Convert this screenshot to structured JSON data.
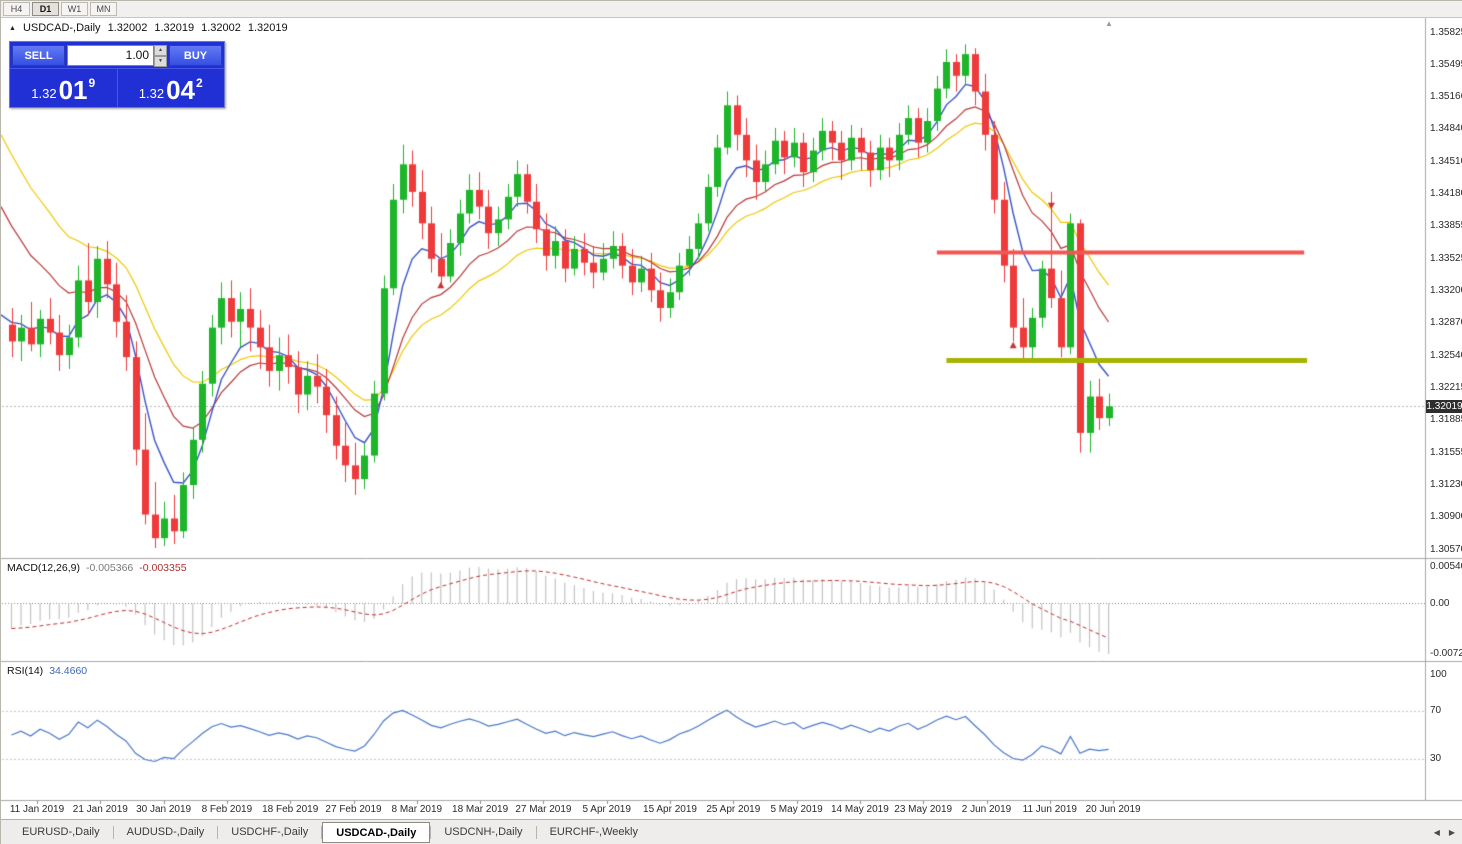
{
  "toolbar": {
    "timeframes": [
      {
        "label": "H4",
        "active": false
      },
      {
        "label": "D1",
        "active": true
      },
      {
        "label": "W1",
        "active": false
      },
      {
        "label": "MN",
        "active": false
      }
    ]
  },
  "header": {
    "symbol": "USDCAD-,Daily",
    "open": "1.32002",
    "high": "1.32019",
    "low": "1.32002",
    "close": "1.32019"
  },
  "trade_panel": {
    "sell_label": "SELL",
    "buy_label": "BUY",
    "volume": "1.00",
    "sell_price": {
      "prefix": "1.32",
      "big": "01",
      "sup": "9"
    },
    "buy_price": {
      "prefix": "1.32",
      "big": "04",
      "sup": "2"
    }
  },
  "price_axis": {
    "labels": [
      "1.35825",
      "1.35495",
      "1.35166",
      "1.34840",
      "1.34510",
      "1.34180",
      "1.33855",
      "1.33525",
      "1.33200",
      "1.32870",
      "1.32540",
      "1.32215",
      "1.31885",
      "1.31555",
      "1.31230",
      "1.30900",
      "1.30570"
    ],
    "current": "1.32019"
  },
  "macd_panel": {
    "label": "MACD(12,26,9)",
    "value_main": "-0.005366",
    "value_signal": "-0.003355",
    "axis_labels": [
      "0.005402",
      "0.00",
      "-0.007247"
    ]
  },
  "rsi_panel": {
    "label": "RSI(14)",
    "value": "34.4660",
    "axis_labels": [
      "100",
      "70",
      "30"
    ],
    "levels": [
      70,
      30
    ]
  },
  "date_axis": {
    "labels": [
      "11 Jan 2019",
      "21 Jan 2019",
      "30 Jan 2019",
      "8 Feb 2019",
      "18 Feb 2019",
      "27 Feb 2019",
      "8 Mar 2019",
      "18 Mar 2019",
      "27 Mar 2019",
      "5 Apr 2019",
      "15 Apr 2019",
      "25 Apr 2019",
      "5 May 2019",
      "14 May 2019",
      "23 May 2019",
      "2 Jun 2019",
      "11 Jun 2019",
      "20 Jun 2019"
    ]
  },
  "tabs": {
    "items": [
      {
        "label": "EURUSD-,Daily",
        "active": false
      },
      {
        "label": "AUDUSD-,Daily",
        "active": false
      },
      {
        "label": "USDCHF-,Daily",
        "active": false
      },
      {
        "label": "USDCAD-,Daily",
        "active": true
      },
      {
        "label": "USDCNH-,Daily",
        "active": false
      },
      {
        "label": "EURCHF-,Weekly",
        "active": false
      }
    ]
  },
  "icons": {
    "header_marker": "▲",
    "spinner_up": "▲",
    "spinner_down": "▼",
    "tab_scroll_left": "◀",
    "tab_scroll_right": "▶",
    "shift_marker": "▲"
  },
  "chart_data": {
    "type": "candlestick",
    "symbol": "USDCAD",
    "timeframe": "Daily",
    "price_scale": {
      "max": 1.35825,
      "min": 1.3057
    },
    "current_price": 1.32019,
    "colors": {
      "up": "#1db52a",
      "down": "#ef3a3c"
    },
    "ohlc": [
      [
        1.3285,
        1.3302,
        1.3252,
        1.3268
      ],
      [
        1.3268,
        1.3295,
        1.3248,
        1.3282
      ],
      [
        1.3282,
        1.3308,
        1.3258,
        1.3265
      ],
      [
        1.3265,
        1.33,
        1.3252,
        1.3291
      ],
      [
        1.3291,
        1.3312,
        1.3265,
        1.3277
      ],
      [
        1.3277,
        1.3295,
        1.3238,
        1.3254
      ],
      [
        1.3254,
        1.3285,
        1.324,
        1.3272
      ],
      [
        1.3272,
        1.3345,
        1.3262,
        1.333
      ],
      [
        1.333,
        1.3368,
        1.3295,
        1.3308
      ],
      [
        1.3308,
        1.3365,
        1.3292,
        1.3352
      ],
      [
        1.3352,
        1.337,
        1.3312,
        1.3326
      ],
      [
        1.3326,
        1.3348,
        1.3272,
        1.3288
      ],
      [
        1.3288,
        1.3315,
        1.3238,
        1.3252
      ],
      [
        1.3252,
        1.3268,
        1.3142,
        1.3158
      ],
      [
        1.3158,
        1.3195,
        1.3082,
        1.3092
      ],
      [
        1.3092,
        1.3125,
        1.3058,
        1.3068
      ],
      [
        1.3068,
        1.3105,
        1.306,
        1.3088
      ],
      [
        1.3088,
        1.3112,
        1.3062,
        1.3075
      ],
      [
        1.3075,
        1.3135,
        1.3068,
        1.3122
      ],
      [
        1.3122,
        1.318,
        1.3108,
        1.3168
      ],
      [
        1.3168,
        1.3238,
        1.3155,
        1.3225
      ],
      [
        1.3225,
        1.3295,
        1.3212,
        1.3282
      ],
      [
        1.3282,
        1.3328,
        1.3265,
        1.3312
      ],
      [
        1.3312,
        1.333,
        1.3272,
        1.3288
      ],
      [
        1.3288,
        1.3318,
        1.3262,
        1.3301
      ],
      [
        1.3301,
        1.3322,
        1.3258,
        1.3282
      ],
      [
        1.3282,
        1.33,
        1.324,
        1.3262
      ],
      [
        1.3262,
        1.3285,
        1.3222,
        1.3238
      ],
      [
        1.3238,
        1.3272,
        1.3218,
        1.3254
      ],
      [
        1.3254,
        1.3275,
        1.3225,
        1.3242
      ],
      [
        1.3242,
        1.3258,
        1.3195,
        1.3214
      ],
      [
        1.3214,
        1.3248,
        1.3198,
        1.3233
      ],
      [
        1.3233,
        1.3255,
        1.3205,
        1.3222
      ],
      [
        1.3222,
        1.324,
        1.3175,
        1.3193
      ],
      [
        1.3193,
        1.3212,
        1.3148,
        1.3162
      ],
      [
        1.3162,
        1.3185,
        1.3125,
        1.3142
      ],
      [
        1.3142,
        1.3165,
        1.3112,
        1.3128
      ],
      [
        1.3128,
        1.3165,
        1.3118,
        1.3152
      ],
      [
        1.3152,
        1.3228,
        1.3145,
        1.3215
      ],
      [
        1.3215,
        1.3335,
        1.3208,
        1.3322
      ],
      [
        1.3322,
        1.3428,
        1.3315,
        1.3412
      ],
      [
        1.3412,
        1.3468,
        1.3398,
        1.3448
      ],
      [
        1.3448,
        1.3462,
        1.3405,
        1.342
      ],
      [
        1.342,
        1.3442,
        1.3372,
        1.3388
      ],
      [
        1.3388,
        1.3405,
        1.3338,
        1.3352
      ],
      [
        1.3352,
        1.3378,
        1.3322,
        1.3334
      ],
      [
        1.3334,
        1.3382,
        1.3328,
        1.3368
      ],
      [
        1.3368,
        1.3412,
        1.3355,
        1.3398
      ],
      [
        1.3398,
        1.3438,
        1.3388,
        1.3422
      ],
      [
        1.3422,
        1.344,
        1.3392,
        1.3405
      ],
      [
        1.3405,
        1.3422,
        1.3362,
        1.3378
      ],
      [
        1.3378,
        1.3405,
        1.3365,
        1.3392
      ],
      [
        1.3392,
        1.3428,
        1.3382,
        1.3415
      ],
      [
        1.3415,
        1.3452,
        1.3405,
        1.3438
      ],
      [
        1.3438,
        1.3448,
        1.3398,
        1.341
      ],
      [
        1.341,
        1.3428,
        1.3368,
        1.3382
      ],
      [
        1.3382,
        1.3398,
        1.334,
        1.3355
      ],
      [
        1.3355,
        1.3385,
        1.3342,
        1.337
      ],
      [
        1.337,
        1.3382,
        1.3328,
        1.3342
      ],
      [
        1.3342,
        1.3375,
        1.3335,
        1.3362
      ],
      [
        1.3362,
        1.3378,
        1.3335,
        1.3348
      ],
      [
        1.3348,
        1.3365,
        1.3322,
        1.3338
      ],
      [
        1.3338,
        1.3368,
        1.333,
        1.3352
      ],
      [
        1.3352,
        1.338,
        1.3342,
        1.3365
      ],
      [
        1.3365,
        1.3378,
        1.3332,
        1.3345
      ],
      [
        1.3345,
        1.3362,
        1.3315,
        1.3328
      ],
      [
        1.3328,
        1.3355,
        1.3318,
        1.3342
      ],
      [
        1.3342,
        1.3358,
        1.3308,
        1.332
      ],
      [
        1.332,
        1.3338,
        1.3288,
        1.3302
      ],
      [
        1.3302,
        1.3332,
        1.3292,
        1.3318
      ],
      [
        1.3318,
        1.3358,
        1.331,
        1.3345
      ],
      [
        1.3345,
        1.3375,
        1.3335,
        1.3362
      ],
      [
        1.3362,
        1.3398,
        1.3352,
        1.3388
      ],
      [
        1.3388,
        1.3438,
        1.338,
        1.3425
      ],
      [
        1.3425,
        1.3478,
        1.3415,
        1.3465
      ],
      [
        1.3465,
        1.3522,
        1.3458,
        1.3508
      ],
      [
        1.3508,
        1.3518,
        1.3462,
        1.3478
      ],
      [
        1.3478,
        1.3495,
        1.3435,
        1.3452
      ],
      [
        1.3452,
        1.3468,
        1.3412,
        1.343
      ],
      [
        1.343,
        1.3462,
        1.342,
        1.3448
      ],
      [
        1.3448,
        1.3485,
        1.3438,
        1.3472
      ],
      [
        1.3472,
        1.3482,
        1.3438,
        1.3455
      ],
      [
        1.3455,
        1.3485,
        1.3445,
        1.347
      ],
      [
        1.347,
        1.348,
        1.3425,
        1.344
      ],
      [
        1.344,
        1.3475,
        1.343,
        1.3462
      ],
      [
        1.3462,
        1.3495,
        1.3452,
        1.3482
      ],
      [
        1.3482,
        1.3492,
        1.3452,
        1.347
      ],
      [
        1.347,
        1.3482,
        1.3432,
        1.3452
      ],
      [
        1.3452,
        1.3488,
        1.3442,
        1.3475
      ],
      [
        1.3475,
        1.3485,
        1.3442,
        1.346
      ],
      [
        1.346,
        1.3472,
        1.3425,
        1.3442
      ],
      [
        1.3442,
        1.3478,
        1.3432,
        1.3465
      ],
      [
        1.3465,
        1.3475,
        1.3435,
        1.3452
      ],
      [
        1.3452,
        1.349,
        1.3442,
        1.3478
      ],
      [
        1.3478,
        1.3508,
        1.3468,
        1.3495
      ],
      [
        1.3495,
        1.3505,
        1.3455,
        1.347
      ],
      [
        1.347,
        1.3505,
        1.346,
        1.3492
      ],
      [
        1.3492,
        1.3538,
        1.3482,
        1.3525
      ],
      [
        1.3525,
        1.3565,
        1.3515,
        1.3552
      ],
      [
        1.3552,
        1.356,
        1.3522,
        1.3538
      ],
      [
        1.3538,
        1.357,
        1.3528,
        1.356
      ],
      [
        1.356,
        1.3566,
        1.3508,
        1.3522
      ],
      [
        1.3522,
        1.354,
        1.3462,
        1.3478
      ],
      [
        1.3478,
        1.3492,
        1.3398,
        1.3412
      ],
      [
        1.3412,
        1.343,
        1.3328,
        1.3345
      ],
      [
        1.3345,
        1.3362,
        1.3268,
        1.3282
      ],
      [
        1.3282,
        1.3312,
        1.325,
        1.3262
      ],
      [
        1.3262,
        1.3302,
        1.325,
        1.3292
      ],
      [
        1.3292,
        1.335,
        1.3282,
        1.3342
      ],
      [
        1.3342,
        1.342,
        1.3302,
        1.3312
      ],
      [
        1.3312,
        1.334,
        1.3252,
        1.3262
      ],
      [
        1.3262,
        1.3398,
        1.3255,
        1.3388
      ],
      [
        1.3388,
        1.3392,
        1.3155,
        1.3175
      ],
      [
        1.3175,
        1.3228,
        1.3155,
        1.3212
      ],
      [
        1.3212,
        1.323,
        1.3178,
        1.319
      ],
      [
        1.319,
        1.3215,
        1.3182,
        1.3202
      ]
    ],
    "moving_averages": [
      {
        "name": "slow-ma",
        "period": 20,
        "seed": 1.3478,
        "color": "#f0c800",
        "width": 1.2
      },
      {
        "name": "medium-ma",
        "period": 13,
        "seed": 1.3405,
        "color": "#b93a3a",
        "width": 1.2
      },
      {
        "name": "fast-ma",
        "period": 6,
        "seed": 1.3295,
        "color": "#3a55c8",
        "width": 1.4
      }
    ],
    "hlines": [
      {
        "name": "resistance-line",
        "price": 1.3359,
        "color": "#f25652",
        "width": 4,
        "from_index": 97,
        "to_index": 135.5
      },
      {
        "name": "support-line",
        "price": 1.3249,
        "color": "#a6b400",
        "width": 5,
        "from_index": 98,
        "to_index": 135.8
      }
    ],
    "markers": [
      {
        "index": 45,
        "price": 1.3325,
        "dir": "up",
        "color": "#cc3333"
      },
      {
        "index": 105,
        "price": 1.3264,
        "dir": "up",
        "color": "#cc3333"
      },
      {
        "index": 109,
        "price": 1.3406,
        "dir": "down",
        "color": "#cc3333"
      }
    ],
    "macd": {
      "fast": 12,
      "slow": 26,
      "signal": 9
    },
    "rsi": {
      "period": 14
    }
  }
}
